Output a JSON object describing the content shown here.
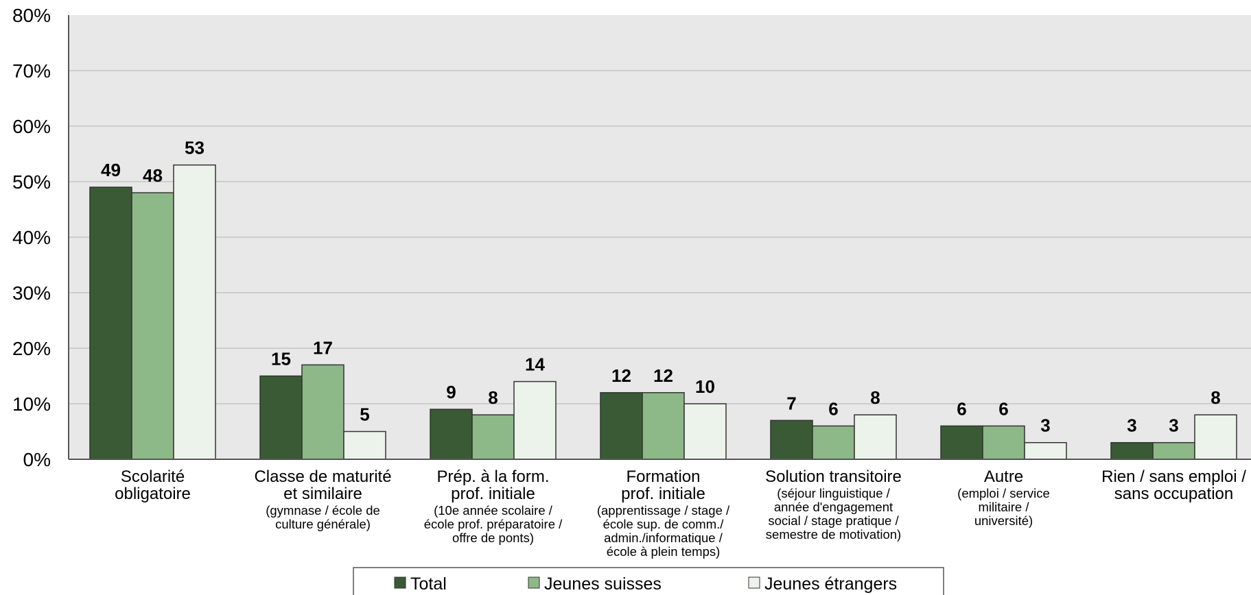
{
  "chart_data": {
    "type": "bar",
    "title": "",
    "xlabel": "",
    "ylabel": "",
    "ylim": [
      0,
      80
    ],
    "y_ticks": [
      "0%",
      "10%",
      "20%",
      "30%",
      "40%",
      "50%",
      "60%",
      "70%",
      "80%"
    ],
    "grid": true,
    "legend_position": "bottom",
    "categories": [
      {
        "lines": [
          "Scolarité",
          "obligatoire"
        ],
        "sub": []
      },
      {
        "lines": [
          "Classe de maturité",
          "et similaire"
        ],
        "sub": [
          "(gymnase / école de",
          "culture générale)"
        ]
      },
      {
        "lines": [
          "Prép. à la form.",
          "prof. initiale"
        ],
        "sub": [
          "(10e année scolaire /",
          "école prof. préparatoire /",
          "offre de ponts)"
        ]
      },
      {
        "lines": [
          "Formation",
          "prof. initiale"
        ],
        "sub": [
          "(apprentissage / stage /",
          "école sup. de comm./",
          "admin./informatique /",
          "école à plein temps)"
        ]
      },
      {
        "lines": [
          "Solution transitoire"
        ],
        "sub": [
          "(séjour linguistique /",
          "année d'engagement",
          "social / stage pratique /",
          "semestre de motivation)"
        ]
      },
      {
        "lines": [
          "Autre"
        ],
        "sub": [
          "(emploi / service",
          "militaire /",
          "université)"
        ]
      },
      {
        "lines": [
          "Rien / sans emploi /",
          "sans occupation"
        ],
        "sub": []
      }
    ],
    "series": [
      {
        "name": "Total",
        "color": "#3a5a36",
        "values": [
          49,
          15,
          9,
          12,
          7,
          6,
          3
        ]
      },
      {
        "name": "Jeunes suisses",
        "color": "#8db887",
        "values": [
          48,
          17,
          8,
          12,
          6,
          6,
          3
        ]
      },
      {
        "name": "Jeunes étrangers",
        "color": "#ecf3ea",
        "values": [
          53,
          5,
          14,
          10,
          8,
          3,
          8
        ]
      }
    ],
    "colors": {
      "plot_background": "#e8e8e8",
      "gridline": "#c4c4c4"
    }
  }
}
